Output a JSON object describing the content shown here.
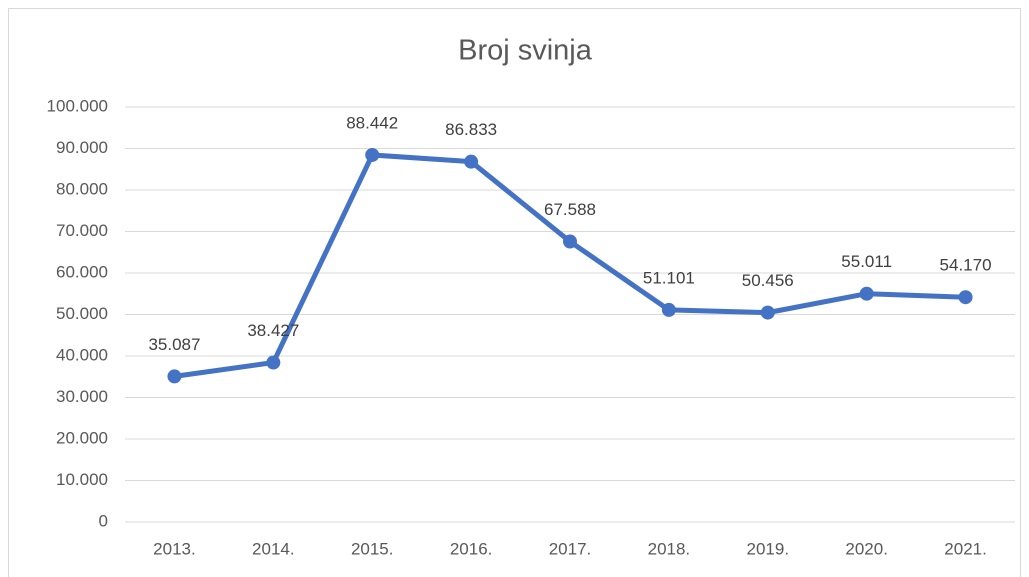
{
  "chart_data": {
    "type": "line",
    "title": "Broj svinja",
    "categories": [
      "2013.",
      "2014.",
      "2015.",
      "2016.",
      "2017.",
      "2018.",
      "2019.",
      "2020.",
      "2021."
    ],
    "series": [
      {
        "name": "Broj svinja",
        "color": "#4472c4",
        "values": [
          35087,
          38427,
          88442,
          86833,
          67588,
          51101,
          50456,
          55011,
          54170
        ],
        "value_labels": [
          "35.087",
          "38.427",
          "88.442",
          "86.833",
          "67.588",
          "51.101",
          "50.456",
          "55.011",
          "54.170"
        ]
      }
    ],
    "ylim": [
      0,
      100000
    ],
    "yticks": [
      0,
      {
        "value": 10000,
        "label": "10.000"
      },
      {
        "value": 20000,
        "label": "20.000"
      },
      {
        "value": 30000,
        "label": "30.000"
      },
      {
        "value": 40000,
        "label": "40.000"
      },
      {
        "value": 50000,
        "label": "50.000"
      },
      {
        "value": 60000,
        "label": "60.000"
      },
      {
        "value": 70000,
        "label": "70.000"
      },
      {
        "value": 80000,
        "label": "80.000"
      },
      {
        "value": 90000,
        "label": "90.000"
      },
      {
        "value": 100000,
        "label": "100.000"
      }
    ],
    "grid": true
  }
}
